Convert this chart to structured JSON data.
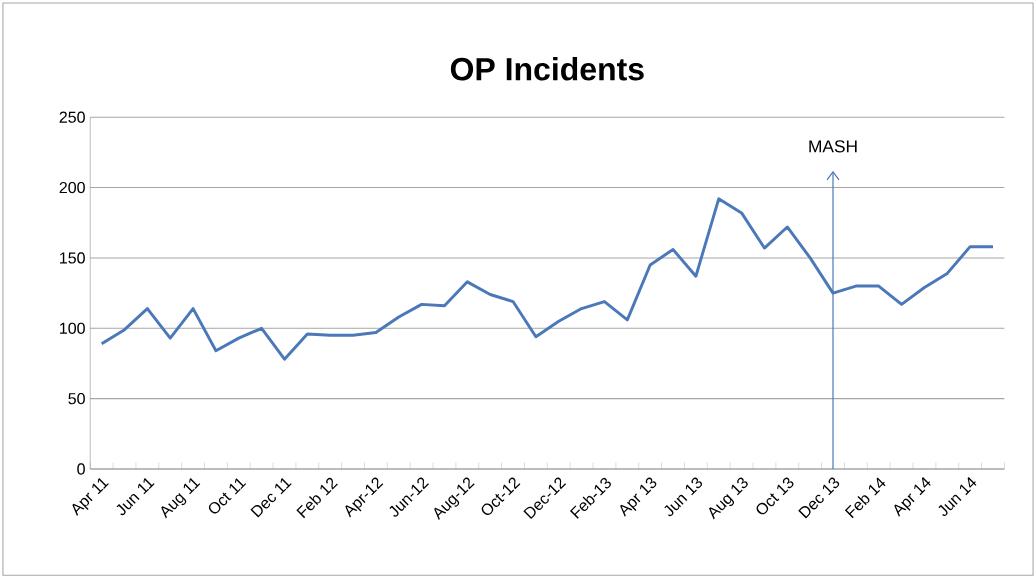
{
  "chart_data": {
    "type": "line",
    "title": "OP Incidents",
    "categories": [
      "Apr 11",
      null,
      "Jun 11",
      null,
      "Aug 11",
      null,
      "Oct 11",
      null,
      "Dec 11",
      null,
      "Feb 12",
      null,
      "Apr-12",
      null,
      "Jun-12",
      null,
      "Aug-12",
      null,
      "Oct-12",
      null,
      "Dec-12",
      null,
      "Feb-13",
      null,
      "Apr 13",
      null,
      "Jun 13",
      null,
      "Aug 13",
      null,
      "Oct 13",
      null,
      "Dec 13",
      null,
      "Feb 14",
      null,
      "Apr 14",
      null,
      "Jun 14",
      null
    ],
    "series": [
      {
        "color": "#4a78b8",
        "values": [
          89,
          99,
          114,
          93,
          114,
          84,
          93,
          100,
          78,
          96,
          95,
          95,
          97,
          108,
          117,
          116,
          133,
          124,
          119,
          94,
          105,
          114,
          119,
          106,
          145,
          156,
          137,
          192,
          182,
          157,
          172,
          150,
          125,
          130,
          130,
          117,
          129,
          139,
          158,
          158
        ]
      }
    ],
    "ylim": [
      0,
      250
    ],
    "yticks": [
      0,
      50,
      100,
      150,
      200,
      250
    ],
    "grid": "y",
    "marker": "none",
    "line_style": "solid",
    "ref_lines": [
      {
        "axis": "x",
        "value": "Dec 13",
        "label": "MASH",
        "color": "#4a78b8"
      }
    ]
  }
}
